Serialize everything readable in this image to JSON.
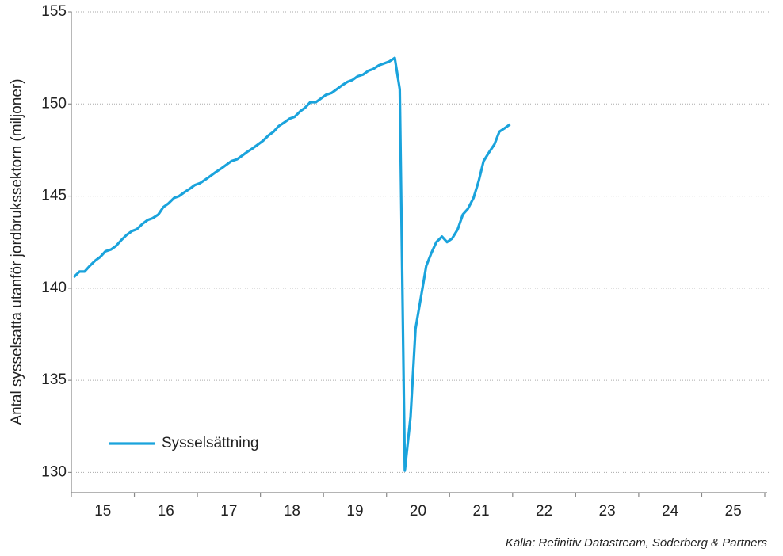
{
  "chart_data": {
    "type": "line",
    "ylabel": "Antal sysselsatta utanför jordbrukssektorn (miljoner)",
    "source": "Källa: Refinitiv Datastream, Söderberg & Partners",
    "x": [
      15.04,
      15.13,
      15.21,
      15.29,
      15.38,
      15.46,
      15.54,
      15.63,
      15.71,
      15.79,
      15.88,
      15.96,
      16.04,
      16.13,
      16.21,
      16.29,
      16.38,
      16.46,
      16.54,
      16.63,
      16.71,
      16.79,
      16.88,
      16.96,
      17.04,
      17.13,
      17.21,
      17.29,
      17.38,
      17.46,
      17.54,
      17.63,
      17.71,
      17.79,
      17.88,
      17.96,
      18.04,
      18.13,
      18.21,
      18.29,
      18.38,
      18.46,
      18.54,
      18.63,
      18.71,
      18.79,
      18.88,
      18.96,
      19.04,
      19.13,
      19.21,
      19.29,
      19.38,
      19.46,
      19.54,
      19.63,
      19.71,
      19.79,
      19.88,
      19.96,
      20.04,
      20.13,
      20.21,
      20.29,
      20.38,
      20.46,
      20.54,
      20.63,
      20.71,
      20.79,
      20.88,
      20.96,
      21.04,
      21.13,
      21.21,
      21.29,
      21.38,
      21.46,
      21.54,
      21.63,
      21.71,
      21.79,
      21.88,
      21.96
    ],
    "series": [
      {
        "name": "Sysselsättning",
        "color": "#1aa3dc",
        "values": [
          140.6,
          140.9,
          140.9,
          141.2,
          141.5,
          141.7,
          142.0,
          142.1,
          142.3,
          142.6,
          142.9,
          143.1,
          143.2,
          143.5,
          143.7,
          143.8,
          144.0,
          144.4,
          144.6,
          144.9,
          145.0,
          145.2,
          145.4,
          145.6,
          145.7,
          145.9,
          146.1,
          146.3,
          146.5,
          146.7,
          146.9,
          147.0,
          147.2,
          147.4,
          147.6,
          147.8,
          148.0,
          148.3,
          148.5,
          148.8,
          149.0,
          149.2,
          149.3,
          149.6,
          149.8,
          150.1,
          150.1,
          150.3,
          150.5,
          150.6,
          150.8,
          151.0,
          151.2,
          151.3,
          151.5,
          151.6,
          151.8,
          151.9,
          152.1,
          152.2,
          152.3,
          152.5,
          150.8,
          130.1,
          133.0,
          137.8,
          139.4,
          141.2,
          141.9,
          142.5,
          142.8,
          142.5,
          142.7,
          143.2,
          144.0,
          144.3,
          144.9,
          145.8,
          146.9,
          147.4,
          147.8,
          148.5,
          148.7,
          148.9
        ]
      }
    ],
    "xlim": [
      15,
      26
    ],
    "xticks": [
      15,
      16,
      17,
      18,
      19,
      20,
      21,
      22,
      23,
      24,
      25,
      26
    ],
    "xlabels": [
      {
        "value": 15.5,
        "label": "15"
      },
      {
        "value": 16.5,
        "label": "16"
      },
      {
        "value": 17.5,
        "label": "17"
      },
      {
        "value": 18.5,
        "label": "18"
      },
      {
        "value": 19.5,
        "label": "19"
      },
      {
        "value": 20.5,
        "label": "20"
      },
      {
        "value": 21.5,
        "label": "21"
      },
      {
        "value": 22.5,
        "label": "22"
      },
      {
        "value": 23.5,
        "label": "23"
      },
      {
        "value": 24.5,
        "label": "24"
      },
      {
        "value": 25.5,
        "label": "25"
      }
    ],
    "ylim": [
      128.9,
      155
    ],
    "yticks": [
      130,
      135,
      140,
      145,
      150,
      155
    ],
    "grid": true
  }
}
